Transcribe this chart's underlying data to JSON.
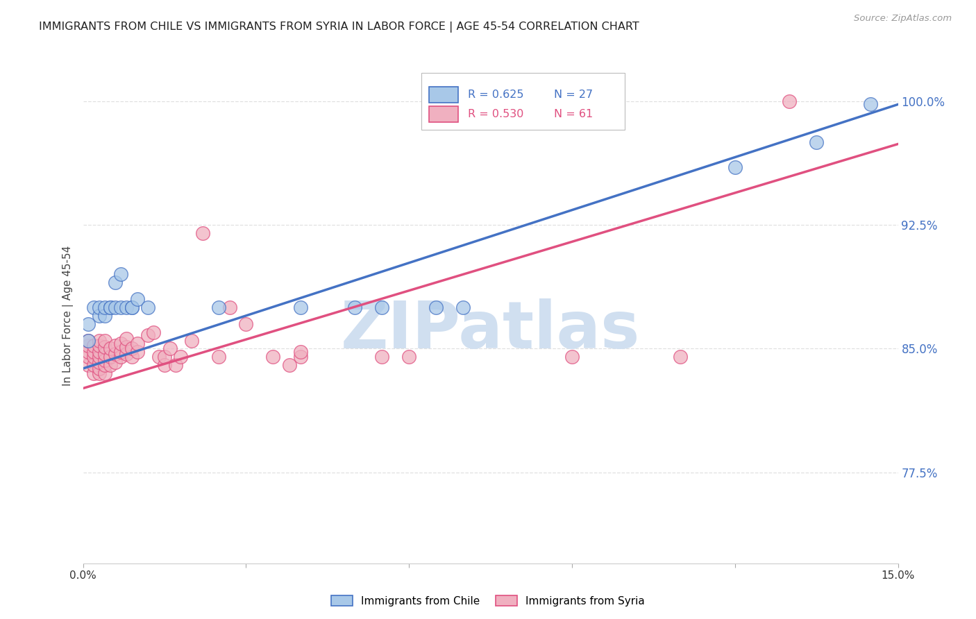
{
  "title": "IMMIGRANTS FROM CHILE VS IMMIGRANTS FROM SYRIA IN LABOR FORCE | AGE 45-54 CORRELATION CHART",
  "source": "Source: ZipAtlas.com",
  "ylabel": "In Labor Force | Age 45-54",
  "x_min": 0.0,
  "x_max": 0.15,
  "y_min": 0.72,
  "y_max": 1.02,
  "x_ticks": [
    0.0,
    0.03,
    0.06,
    0.09,
    0.12,
    0.15
  ],
  "x_tick_labels": [
    "0.0%",
    "",
    "",
    "",
    "",
    "15.0%"
  ],
  "y_tick_labels_right": [
    "100.0%",
    "92.5%",
    "85.0%",
    "77.5%"
  ],
  "y_tick_positions_right": [
    1.0,
    0.925,
    0.85,
    0.775
  ],
  "grid_color": "#e0e0e0",
  "background_color": "#ffffff",
  "chile_color": "#a8c8e8",
  "syria_color": "#f0b0c0",
  "chile_line_color": "#4472c4",
  "syria_line_color": "#e05080",
  "chile_R": 0.625,
  "chile_N": 27,
  "syria_R": 0.53,
  "syria_N": 61,
  "watermark_color": "#d0dff0",
  "chile_x": [
    0.001,
    0.001,
    0.002,
    0.003,
    0.003,
    0.004,
    0.004,
    0.005,
    0.005,
    0.006,
    0.006,
    0.007,
    0.007,
    0.008,
    0.009,
    0.009,
    0.01,
    0.012,
    0.025,
    0.04,
    0.05,
    0.055,
    0.065,
    0.07,
    0.12,
    0.135,
    0.145
  ],
  "chile_y": [
    0.855,
    0.865,
    0.875,
    0.87,
    0.875,
    0.87,
    0.875,
    0.875,
    0.875,
    0.875,
    0.89,
    0.895,
    0.875,
    0.875,
    0.875,
    0.875,
    0.88,
    0.875,
    0.875,
    0.875,
    0.875,
    0.875,
    0.875,
    0.875,
    0.96,
    0.975,
    0.998
  ],
  "syria_x": [
    0.001,
    0.001,
    0.001,
    0.001,
    0.001,
    0.002,
    0.002,
    0.002,
    0.002,
    0.002,
    0.003,
    0.003,
    0.003,
    0.003,
    0.003,
    0.003,
    0.003,
    0.004,
    0.004,
    0.004,
    0.004,
    0.004,
    0.004,
    0.005,
    0.005,
    0.005,
    0.006,
    0.006,
    0.006,
    0.007,
    0.007,
    0.007,
    0.008,
    0.008,
    0.008,
    0.009,
    0.009,
    0.01,
    0.01,
    0.012,
    0.013,
    0.014,
    0.015,
    0.015,
    0.016,
    0.017,
    0.018,
    0.02,
    0.022,
    0.025,
    0.027,
    0.03,
    0.035,
    0.038,
    0.04,
    0.04,
    0.055,
    0.06,
    0.09,
    0.11,
    0.13
  ],
  "syria_y": [
    0.84,
    0.845,
    0.848,
    0.852,
    0.855,
    0.835,
    0.84,
    0.845,
    0.848,
    0.852,
    0.835,
    0.838,
    0.842,
    0.845,
    0.848,
    0.852,
    0.855,
    0.835,
    0.84,
    0.843,
    0.847,
    0.851,
    0.855,
    0.84,
    0.845,
    0.85,
    0.842,
    0.847,
    0.852,
    0.845,
    0.848,
    0.853,
    0.847,
    0.851,
    0.856,
    0.845,
    0.85,
    0.848,
    0.853,
    0.858,
    0.86,
    0.845,
    0.84,
    0.845,
    0.85,
    0.84,
    0.845,
    0.855,
    0.92,
    0.845,
    0.875,
    0.865,
    0.845,
    0.84,
    0.845,
    0.848,
    0.845,
    0.845,
    0.845,
    0.845,
    1.0
  ],
  "chile_line_x0": 0.0,
  "chile_line_y0": 0.838,
  "chile_line_x1": 0.15,
  "chile_line_y1": 0.998,
  "syria_line_x0": 0.0,
  "syria_line_y0": 0.826,
  "syria_line_x1": 0.15,
  "syria_line_y1": 0.974
}
